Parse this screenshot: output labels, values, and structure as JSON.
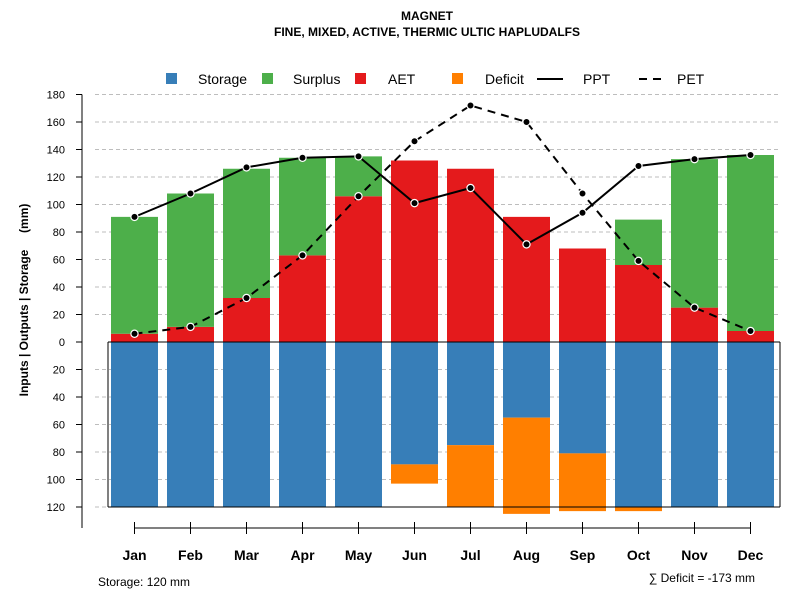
{
  "chart_data": {
    "type": "bar",
    "title": "MAGNET",
    "subtitle": "FINE, MIXED, ACTIVE, THERMIC ULTIC HAPLUDALFS",
    "ylabel": "Inputs | Outputs | Storage     (mm)",
    "ylim": [
      -120,
      180
    ],
    "yticks": [
      {
        "value": 180,
        "label": "180"
      },
      {
        "value": 160,
        "label": "160"
      },
      {
        "value": 140,
        "label": "140"
      },
      {
        "value": 120,
        "label": "120"
      },
      {
        "value": 100,
        "label": "100"
      },
      {
        "value": 80,
        "label": "80"
      },
      {
        "value": 60,
        "label": "60"
      },
      {
        "value": 40,
        "label": "40"
      },
      {
        "value": 20,
        "label": "20"
      },
      {
        "value": 0,
        "label": "0"
      },
      {
        "value": -20,
        "label": "20"
      },
      {
        "value": -40,
        "label": "40"
      },
      {
        "value": -60,
        "label": "60"
      },
      {
        "value": -80,
        "label": "80"
      },
      {
        "value": -100,
        "label": "100"
      },
      {
        "value": -120,
        "label": "120"
      }
    ],
    "categories": [
      "Jan",
      "Feb",
      "Mar",
      "Apr",
      "May",
      "Jun",
      "Jul",
      "Aug",
      "Sep",
      "Oct",
      "Nov",
      "Dec"
    ],
    "series": [
      {
        "name": "AET",
        "kind": "bar-up",
        "color": "#E41A1C",
        "values": [
          6,
          11,
          32,
          63,
          106,
          132,
          126,
          91,
          68,
          56,
          25,
          8
        ]
      },
      {
        "name": "Surplus",
        "kind": "bar-up-stacked",
        "color": "#4DAF4A",
        "values": [
          85,
          97,
          94,
          71,
          29,
          0,
          0,
          0,
          0,
          33,
          108,
          128
        ]
      },
      {
        "name": "Storage",
        "kind": "bar-down",
        "color": "#377EB8",
        "values": [
          120,
          120,
          120,
          120,
          120,
          89,
          75,
          55,
          81,
          120,
          120,
          120
        ]
      },
      {
        "name": "Deficit",
        "kind": "bar-down-stacked",
        "color": "#FF7F00",
        "values": [
          0,
          0,
          0,
          0,
          0,
          14,
          45,
          70,
          42,
          3,
          0,
          0
        ]
      },
      {
        "name": "PPT",
        "kind": "line-solid",
        "color": "#000000",
        "values": [
          91,
          108,
          127,
          134,
          135,
          101,
          112,
          71,
          94,
          128,
          133,
          136
        ]
      },
      {
        "name": "PET",
        "kind": "line-dashed",
        "color": "#000000",
        "values": [
          6,
          11,
          32,
          63,
          106,
          146,
          172,
          160,
          108,
          59,
          25,
          8
        ]
      }
    ],
    "legend": {
      "position": "top",
      "items": [
        {
          "label": "Storage",
          "type": "square",
          "color": "#377EB8"
        },
        {
          "label": "Surplus",
          "type": "square",
          "color": "#4DAF4A"
        },
        {
          "label": "AET",
          "type": "square",
          "color": "#E41A1C"
        },
        {
          "label": "Deficit",
          "type": "square",
          "color": "#FF7F00"
        },
        {
          "label": "PPT",
          "type": "line-solid",
          "color": "#000000"
        },
        {
          "label": "PET",
          "type": "line-dashed",
          "color": "#000000"
        }
      ]
    },
    "grid": true,
    "storage_note": "Storage: 120 mm",
    "deficit_note": "∑ Deficit = -173 mm"
  }
}
